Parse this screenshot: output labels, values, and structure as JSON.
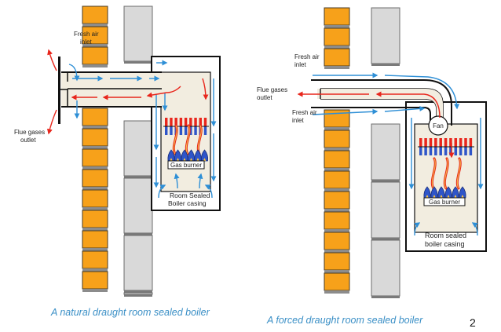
{
  "left_diagram": {
    "fresh_air_label": [
      "Fresh air",
      "inlet"
    ],
    "flue_label": [
      "Flue gases",
      "outlet"
    ],
    "burner_label": "Gas burner",
    "casing_label": [
      "Room Sealed",
      "Boiler casing"
    ],
    "caption": "A natural draught room sealed boiler"
  },
  "right_diagram": {
    "fresh_air_top_label": [
      "Fresh air",
      "inlet"
    ],
    "flue_label": [
      "Flue gases",
      "outlet"
    ],
    "fresh_air_bottom_label": [
      "Fresh air",
      "inlet"
    ],
    "fan_label": "Fan",
    "burner_label": "Gas burner",
    "casing_label": [
      "Room sealed",
      "boiler casing"
    ],
    "caption": "A forced draught room sealed boiler"
  },
  "page_number": "2",
  "colors": {
    "brick": "#f7a11a",
    "block": "#d9d9d9",
    "casing_fill": "#f2ede0",
    "air_arrow": "#2e8fd6",
    "flue_arrow": "#e8261c",
    "flame_blue": "#2f55c8",
    "caption": "#3a8fc6"
  }
}
